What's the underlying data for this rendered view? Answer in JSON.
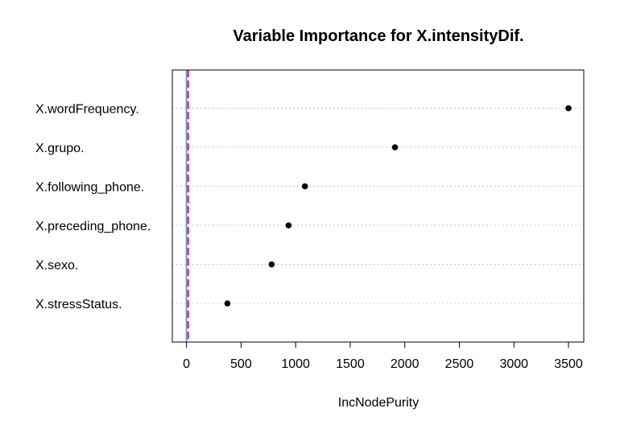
{
  "chart_data": {
    "type": "scatter",
    "title": "Variable Importance for  X.intensityDif.",
    "xlabel": "IncNodePurity",
    "ylabel": "",
    "xlim": [
      -130,
      3640
    ],
    "xticks": [
      0,
      500,
      1000,
      1500,
      2000,
      2500,
      3000,
      3500
    ],
    "grid": "horizontal dotted",
    "categories": [
      "X.wordFrequency.",
      "X.grupo.",
      "X.following_phone.",
      "X.preceding_phone.",
      "X.sexo.",
      "X.stressStatus."
    ],
    "values": [
      3500,
      1910,
      1085,
      935,
      780,
      375
    ],
    "reference_lines": [
      {
        "x": 0,
        "color": "#6b9bd1",
        "style": "solid"
      },
      {
        "x": 15,
        "color": "#d81b60",
        "style": "dashed"
      }
    ],
    "point_color": "#000000"
  }
}
